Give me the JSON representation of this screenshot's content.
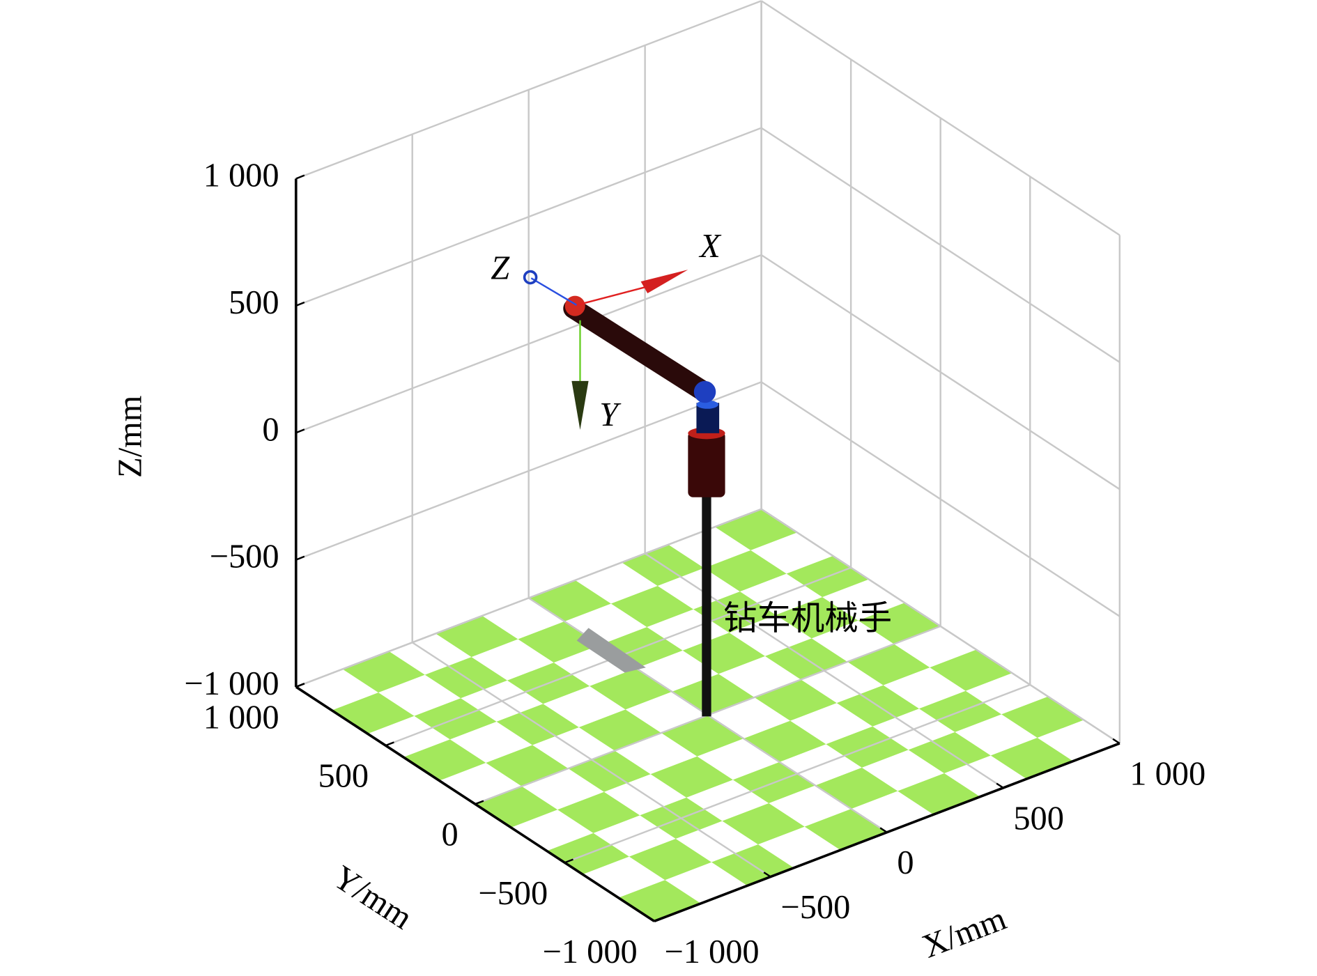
{
  "chart_data": {
    "type": "3d",
    "xlabel": "X/mm",
    "ylabel": "Y/mm",
    "zlabel": "Z/mm",
    "annotation": "钻车机械手",
    "frame_labels": [
      "X",
      "Y",
      "Z"
    ],
    "xlim": [
      -1000,
      1000
    ],
    "ylim": [
      -1000,
      1000
    ],
    "zlim": [
      -1000,
      1000
    ],
    "xticks": [
      {
        "value": -1000,
        "label": "−1 000"
      },
      {
        "value": -500,
        "label": "−500"
      },
      0,
      500,
      {
        "value": 1000,
        "label": "1 000"
      }
    ],
    "yticks": [
      {
        "value": -1000,
        "label": "−1 000"
      },
      {
        "value": -500,
        "label": "−500"
      },
      0,
      500,
      {
        "value": 1000,
        "label": "1 000"
      }
    ],
    "zticks": [
      {
        "value": -1000,
        "label": "−1 000"
      },
      {
        "value": -500,
        "label": "−500"
      },
      0,
      500,
      {
        "value": 1000,
        "label": "1 000"
      }
    ],
    "grid": true
  }
}
